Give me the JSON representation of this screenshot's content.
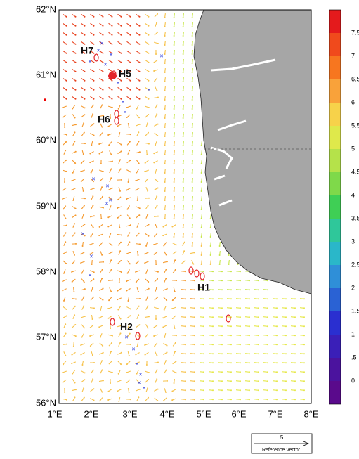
{
  "map": {
    "lat_labels": [
      "62°N",
      "61°N",
      "60°N",
      "59°N",
      "58°N",
      "57°N",
      "56°N"
    ],
    "lon_labels": [
      "1°E",
      "2°E",
      "3°E",
      "4°E",
      "5°E",
      "6°E",
      "7°E",
      "8°E"
    ],
    "colorbar": {
      "labels": [
        "7.5",
        "7",
        "6.5",
        "6",
        "5.5",
        "5",
        "4.5",
        "4",
        "3.5",
        "3",
        "2.5",
        "2",
        "1.5",
        "1",
        ".5",
        "0"
      ]
    },
    "sites": [
      {
        "label": "H7"
      },
      {
        "label": "H5"
      },
      {
        "label": "H6"
      },
      {
        "label": "H1"
      },
      {
        "label": "H2"
      }
    ],
    "reference_vector": {
      "value": ".5",
      "label": "Reference Vector"
    }
  }
}
